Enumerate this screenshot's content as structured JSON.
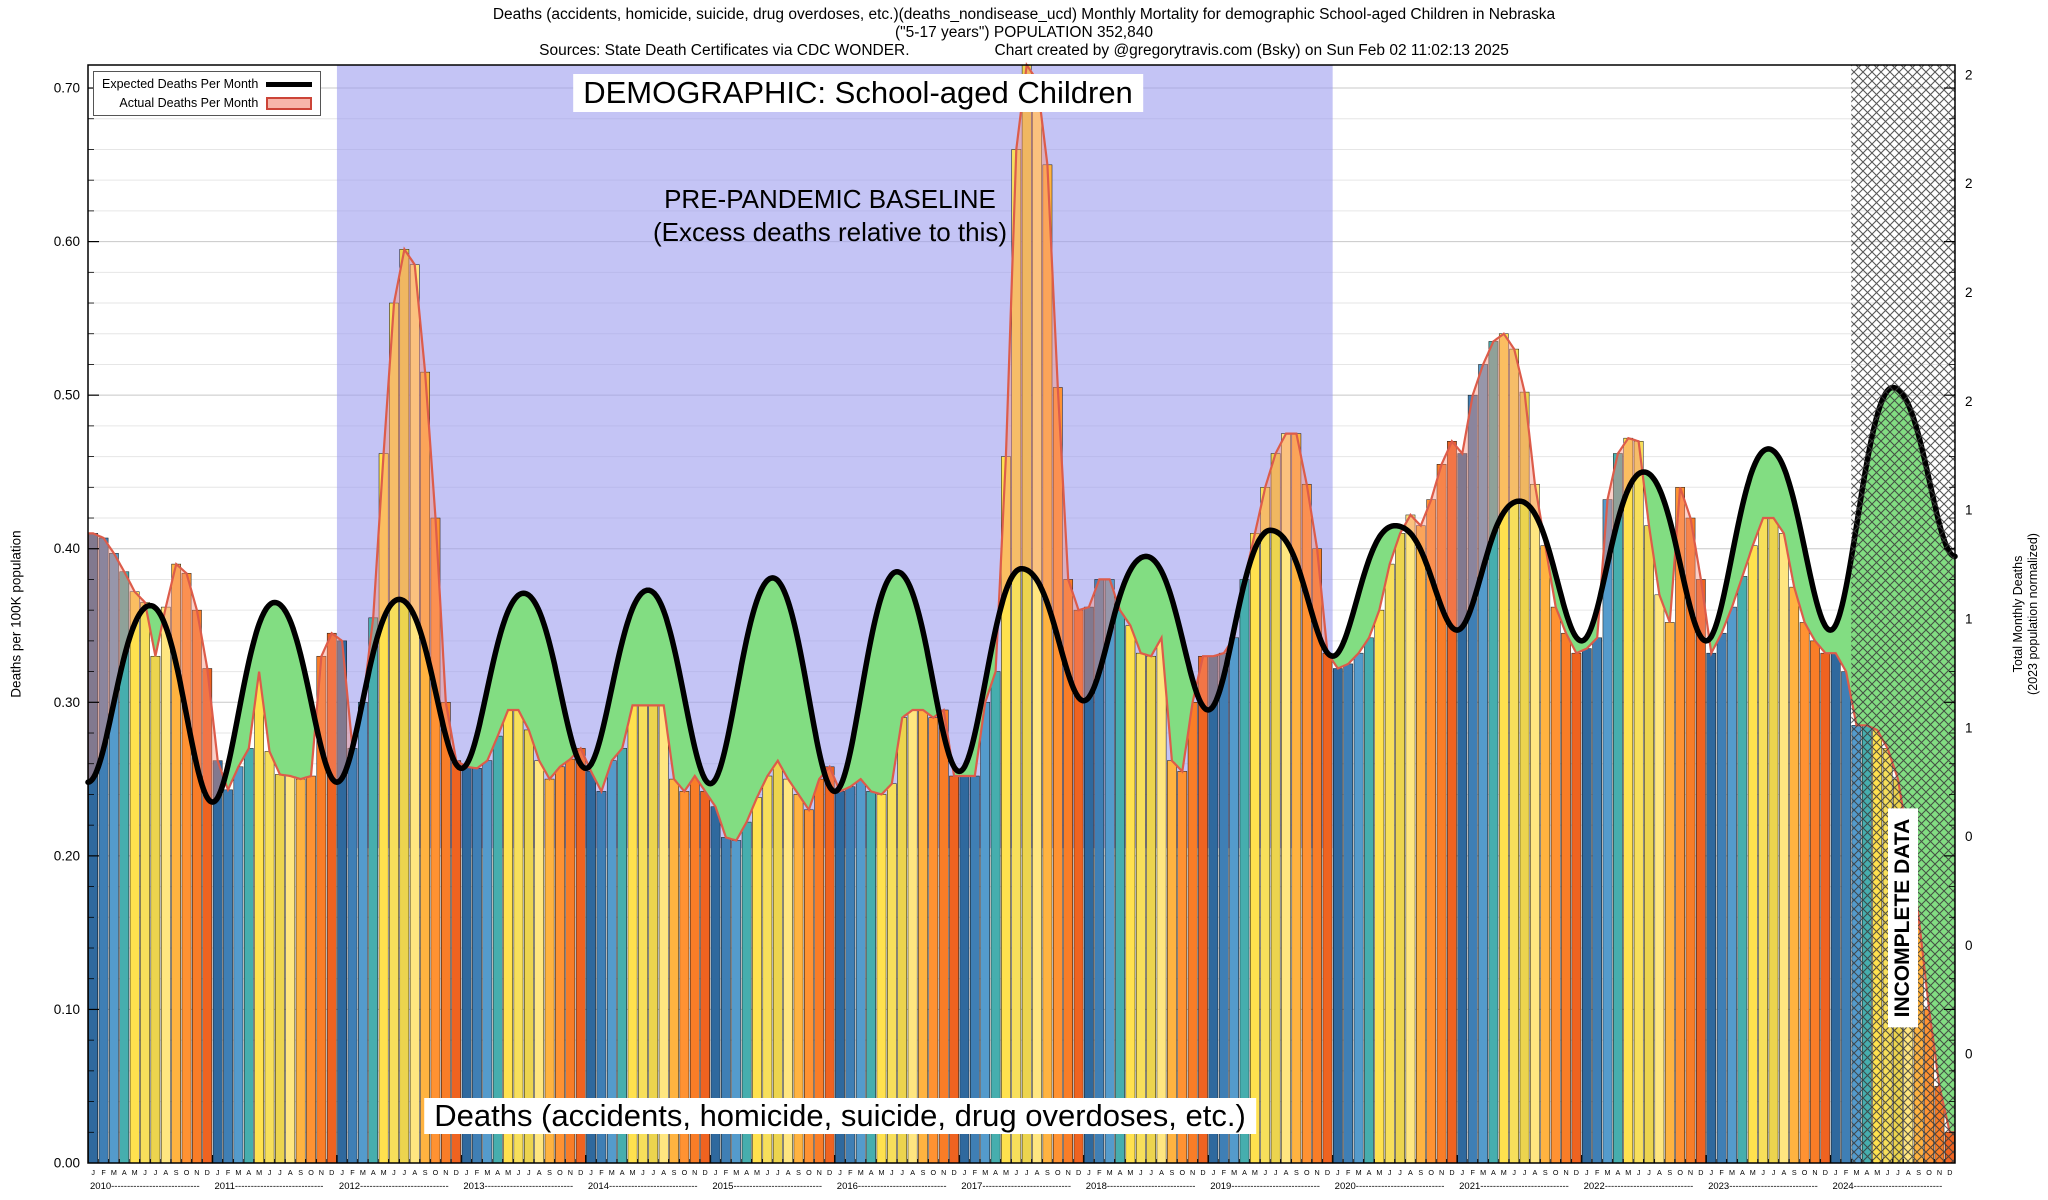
{
  "header": {
    "title_line1": "Deaths (accidents, homicide, suicide, drug overdoses, etc.)(deaths_nondisease_ucd) Monthly Mortality for demographic School-aged Children in Nebraska",
    "title_line2": "(\"5-17 years\") POPULATION 352,840",
    "sources": "Sources: State Death Certificates via CDC WONDER.",
    "credit": "Chart created by @gregorytravis.com (Bsky) on Sun Feb 02 11:02:13 2025"
  },
  "legend": {
    "expected_label": "Expected Deaths Per Month",
    "actual_label": "Actual Deaths Per Month"
  },
  "overlays": {
    "demographic": "DEMOGRAPHIC: School-aged Children",
    "baseline_line1": "PRE-PANDEMIC BASELINE",
    "baseline_line2": "(Excess deaths relative to this)",
    "bottom_label": "Deaths (accidents, homicide, suicide, drug overdoses, etc.)",
    "incomplete": "INCOMPLETE DATA"
  },
  "axes": {
    "y_left_label": "Deaths per 100K population",
    "y_right_label_1": "Total Monthly Deaths",
    "y_right_label_2": "(2023 population normalized)",
    "y_left_ticks": [
      "0.00",
      "0.10",
      "0.20",
      "0.30",
      "0.40",
      "0.50",
      "0.60",
      "0.70"
    ],
    "y_right_tick_values": [
      0.0709,
      0.1417,
      0.2126,
      0.2834,
      0.3543,
      0.4251,
      0.496,
      0.5668,
      0.6377,
      0.7086
    ],
    "y_right_ticks": [
      "0",
      "0",
      "0",
      "1",
      "1",
      "1",
      "2",
      "2",
      "2",
      "2"
    ],
    "month_letters": [
      "J",
      "F",
      "M",
      "A",
      "M",
      "J",
      "J",
      "A",
      "S",
      "O",
      "N",
      "D"
    ],
    "years": [
      "2010",
      "2011",
      "2012",
      "2013",
      "2014",
      "2015",
      "2016",
      "2017",
      "2018",
      "2019",
      "2020",
      "2021",
      "2022",
      "2023",
      "2024"
    ]
  },
  "chart_data": {
    "type": "bar",
    "title": "DEMOGRAPHIC: School-aged Children",
    "xlabel": "",
    "ylabel": "Deaths per 100K population",
    "y2label": "Total Monthly Deaths (2023 population normalized)",
    "ylim": [
      0,
      0.715
    ],
    "x_start": "2010-01",
    "x_end": "2024-12",
    "grid": true,
    "legend_position": "top-left",
    "baseline_region_months": [
      24,
      120
    ],
    "incomplete_from_month": 170,
    "actual_monthly_per_100k": [
      0.41,
      0.407,
      0.397,
      0.385,
      0.372,
      0.365,
      0.33,
      0.362,
      0.39,
      0.384,
      0.36,
      0.322,
      0.262,
      0.243,
      0.258,
      0.27,
      0.32,
      0.268,
      0.253,
      0.252,
      0.25,
      0.252,
      0.33,
      0.345,
      0.34,
      0.27,
      0.3,
      0.355,
      0.462,
      0.56,
      0.595,
      0.585,
      0.515,
      0.42,
      0.3,
      0.262,
      0.258,
      0.257,
      0.262,
      0.278,
      0.295,
      0.295,
      0.282,
      0.262,
      0.25,
      0.258,
      0.263,
      0.27,
      0.255,
      0.242,
      0.262,
      0.27,
      0.298,
      0.298,
      0.298,
      0.298,
      0.25,
      0.242,
      0.252,
      0.242,
      0.232,
      0.212,
      0.21,
      0.222,
      0.238,
      0.252,
      0.262,
      0.25,
      0.24,
      0.23,
      0.25,
      0.258,
      0.242,
      0.245,
      0.25,
      0.242,
      0.24,
      0.247,
      0.29,
      0.295,
      0.295,
      0.29,
      0.295,
      0.252,
      0.252,
      0.252,
      0.3,
      0.32,
      0.46,
      0.66,
      0.715,
      0.705,
      0.65,
      0.505,
      0.38,
      0.36,
      0.362,
      0.38,
      0.38,
      0.36,
      0.35,
      0.332,
      0.33,
      0.342,
      0.262,
      0.255,
      0.3,
      0.33,
      0.33,
      0.332,
      0.342,
      0.38,
      0.41,
      0.44,
      0.462,
      0.475,
      0.475,
      0.442,
      0.4,
      0.332,
      0.322,
      0.325,
      0.332,
      0.342,
      0.36,
      0.39,
      0.41,
      0.422,
      0.415,
      0.432,
      0.455,
      0.47,
      0.462,
      0.5,
      0.52,
      0.535,
      0.54,
      0.53,
      0.502,
      0.442,
      0.402,
      0.362,
      0.345,
      0.332,
      0.335,
      0.342,
      0.432,
      0.462,
      0.472,
      0.47,
      0.415,
      0.37,
      0.352,
      0.44,
      0.42,
      0.38,
      0.332,
      0.345,
      0.362,
      0.382,
      0.402,
      0.42,
      0.42,
      0.41,
      0.375,
      0.352,
      0.34,
      0.332,
      0.332,
      0.32,
      0.285,
      0.285,
      0.282,
      0.27,
      0.25,
      0.21,
      0.16,
      0.1,
      0.05,
      0.02
    ],
    "expected_seasonal": {
      "trough_by_year_jan": [
        0.253,
        0.24,
        0.253,
        0.262,
        0.262,
        0.252,
        0.247,
        0.26,
        0.306,
        0.3,
        0.335,
        0.352,
        0.345,
        0.345,
        0.352,
        0.4
      ],
      "peak_by_year_jul": [
        0.368,
        0.37,
        0.372,
        0.376,
        0.378,
        0.386,
        0.39,
        0.392,
        0.4,
        0.417,
        0.42,
        0.436,
        0.455,
        0.47,
        0.51
      ]
    },
    "month_colors": [
      "#2f699e",
      "#3f7fb5",
      "#549bcc",
      "#46aeae",
      "#ffe14e",
      "#f7df5b",
      "#ecd44e",
      "#ffe680",
      "#ffb340",
      "#ff9232",
      "#f97d27",
      "#ef6320"
    ],
    "colors": {
      "expected_line": "#000000",
      "actual_line": "#dd5c4a",
      "actual_excess_fill": "#f5907c",
      "deficit_fill": "#82dd82",
      "baseline_fill": "#9c9cee",
      "hatch": "#3a3a3a",
      "grid_minor": "#e6e6e6",
      "grid_major": "#c8c8c8"
    }
  }
}
